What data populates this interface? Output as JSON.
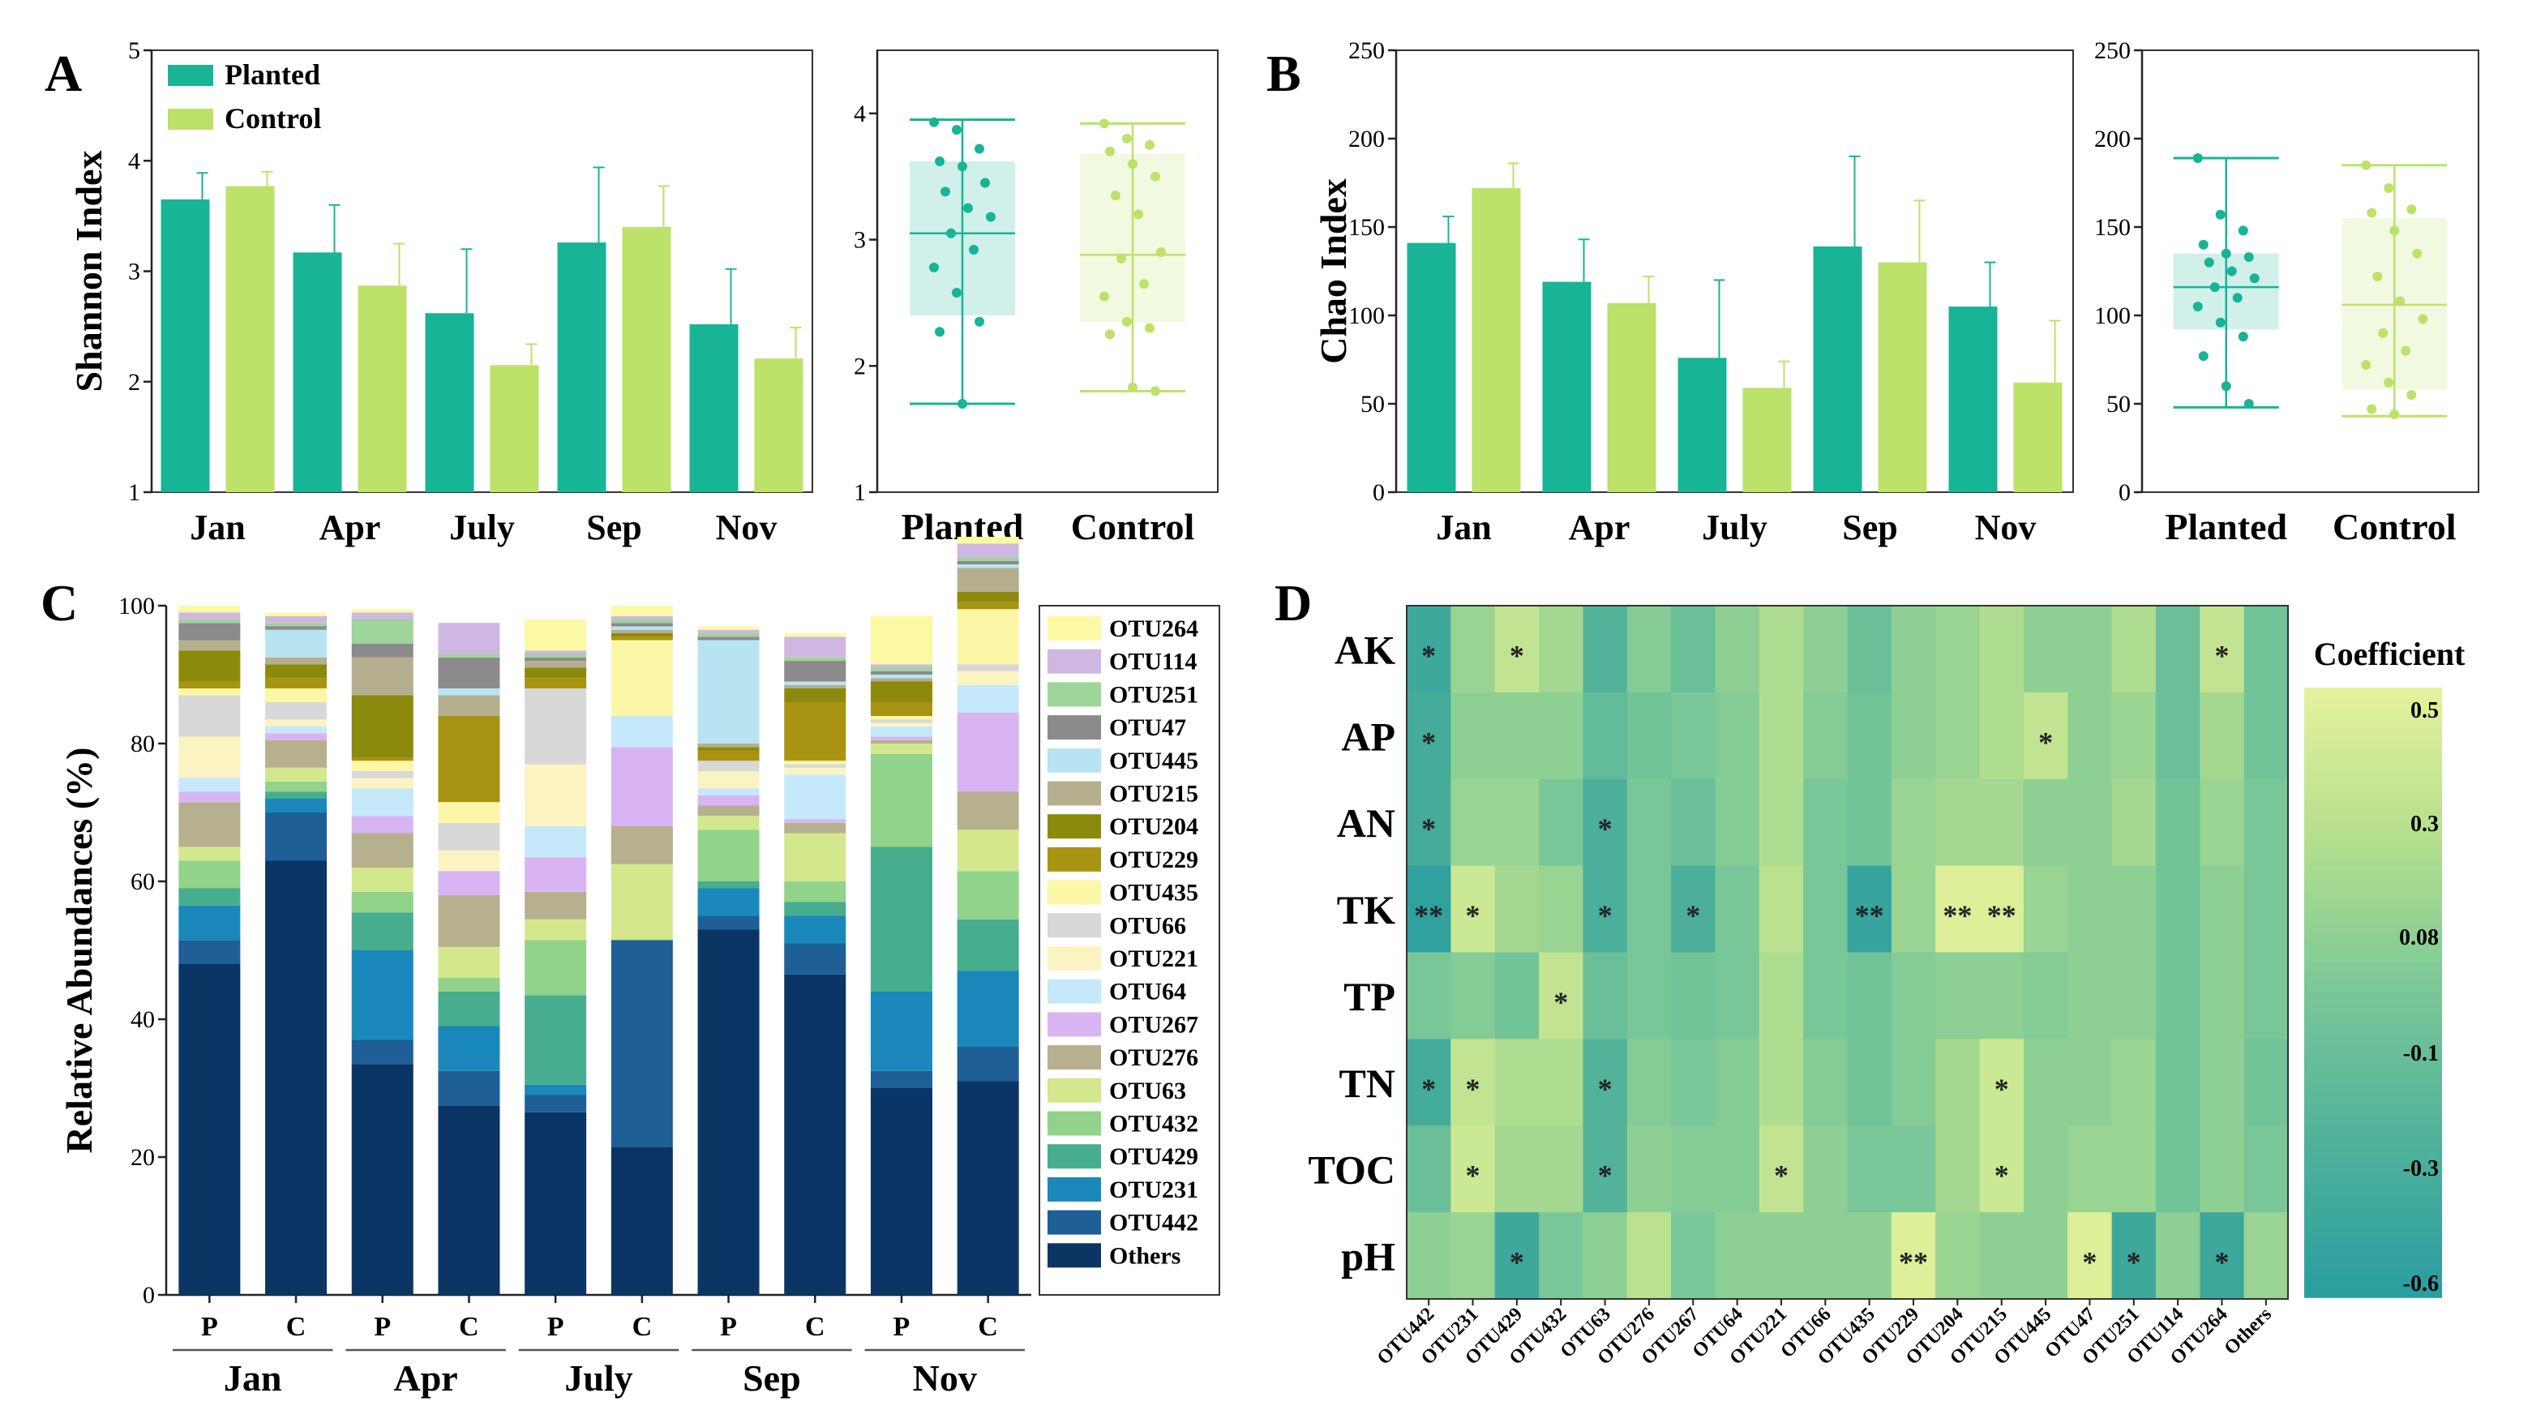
{
  "chart_data": [
    {
      "id": "A-bar",
      "panel": "A",
      "type": "bar",
      "ylabel": "Shannon Index",
      "ylim": [
        1,
        5
      ],
      "yticks": [
        1,
        2,
        3,
        4,
        5
      ],
      "categories": [
        "Jan",
        "Apr",
        "July",
        "Sep",
        "Nov"
      ],
      "series": [
        {
          "name": "Planted",
          "color": "#17b495",
          "values": [
            3.65,
            3.17,
            2.62,
            3.26,
            2.52
          ],
          "errors": [
            0.24,
            0.43,
            0.58,
            0.68,
            0.5
          ]
        },
        {
          "name": "Control",
          "color": "#bce26a",
          "values": [
            3.77,
            2.87,
            2.15,
            3.4,
            2.21
          ],
          "errors": [
            0.13,
            0.38,
            0.19,
            0.37,
            0.28
          ]
        }
      ],
      "legend": "top-left"
    },
    {
      "id": "A-box",
      "panel": "A",
      "type": "box",
      "ylim": [
        1,
        4.5
      ],
      "yticks": [
        1,
        2,
        3,
        4
      ],
      "groups": [
        {
          "name": "Planted",
          "color": "#17b495",
          "q1": 2.4,
          "median": 3.05,
          "q3": 3.62,
          "whisker_low": 1.7,
          "whisker_high": 3.95,
          "points": [
            3.93,
            3.87,
            3.72,
            3.62,
            3.58,
            3.45,
            3.38,
            3.25,
            3.18,
            3.05,
            2.92,
            2.78,
            2.58,
            2.35,
            2.27,
            1.7
          ]
        },
        {
          "name": "Control",
          "color": "#bce26a",
          "q1": 2.35,
          "median": 2.88,
          "q3": 3.68,
          "whisker_low": 1.8,
          "whisker_high": 3.92,
          "points": [
            3.92,
            3.8,
            3.75,
            3.7,
            3.6,
            3.5,
            3.35,
            3.2,
            2.9,
            2.85,
            2.65,
            2.55,
            2.35,
            2.3,
            2.25,
            1.83,
            1.8
          ]
        }
      ]
    },
    {
      "id": "B-bar",
      "panel": "B",
      "type": "bar",
      "ylabel": "Chao Index",
      "ylim": [
        0,
        250
      ],
      "yticks": [
        0,
        50,
        100,
        150,
        200,
        250
      ],
      "categories": [
        "Jan",
        "Apr",
        "July",
        "Sep",
        "Nov"
      ],
      "series": [
        {
          "name": "Planted",
          "color": "#17b495",
          "values": [
            141,
            119,
            76,
            139,
            105
          ],
          "errors": [
            15,
            24,
            44,
            51,
            25
          ]
        },
        {
          "name": "Control",
          "color": "#bce26a",
          "values": [
            172,
            107,
            59,
            130,
            62
          ],
          "errors": [
            14,
            15,
            15,
            35,
            35
          ]
        }
      ]
    },
    {
      "id": "B-box",
      "panel": "B",
      "type": "box",
      "ylim": [
        0,
        250
      ],
      "yticks": [
        0,
        50,
        100,
        150,
        200,
        250
      ],
      "groups": [
        {
          "name": "Planted",
          "color": "#17b495",
          "q1": 92,
          "median": 116,
          "q3": 135,
          "whisker_low": 48,
          "whisker_high": 189,
          "points": [
            189,
            157,
            148,
            140,
            135,
            133,
            130,
            125,
            121,
            116,
            110,
            105,
            96,
            88,
            77,
            60,
            50
          ]
        },
        {
          "name": "Control",
          "color": "#bce26a",
          "q1": 58,
          "median": 106,
          "q3": 155,
          "whisker_low": 43,
          "whisker_high": 185,
          "points": [
            185,
            172,
            160,
            158,
            148,
            135,
            122,
            108,
            98,
            90,
            80,
            72,
            62,
            55,
            47,
            44
          ]
        }
      ]
    },
    {
      "id": "C-stacked",
      "panel": "C",
      "type": "bar",
      "stacked": true,
      "ylabel": "Relative Abundances (%)",
      "ylim": [
        0,
        100
      ],
      "yticks": [
        0,
        20,
        40,
        60,
        80,
        100
      ],
      "categories": [
        "P",
        "C",
        "P",
        "C",
        "P",
        "C",
        "P",
        "C",
        "P",
        "C"
      ],
      "groups": [
        "Jan",
        "Apr",
        "July",
        "Sep",
        "Nov"
      ],
      "series": [
        {
          "name": "Others",
          "color": "#0a3564",
          "values": [
            48,
            63,
            33.5,
            27.5,
            26.5,
            21.5,
            53,
            46.5,
            30,
            31
          ]
        },
        {
          "name": "OTU442",
          "color": "#1e5f97",
          "values": [
            3.5,
            7,
            3.5,
            5,
            2.5,
            30,
            2,
            4.5,
            2.5,
            5
          ]
        },
        {
          "name": "OTU231",
          "color": "#1a88ba",
          "values": [
            5,
            2,
            13,
            6.5,
            1.5,
            0,
            4,
            4,
            11.5,
            11
          ]
        },
        {
          "name": "OTU429",
          "color": "#46ae8e",
          "values": [
            2.5,
            1,
            5.5,
            5,
            13,
            0,
            1,
            2,
            21,
            7.5
          ]
        },
        {
          "name": "OTU432",
          "color": "#91d38b",
          "values": [
            4,
            1.5,
            3,
            2,
            8,
            0,
            7.5,
            3,
            13.5,
            7
          ]
        },
        {
          "name": "OTU63",
          "color": "#d3e88c",
          "values": [
            2,
            2,
            3.5,
            4.5,
            3,
            11,
            2,
            7,
            1.5,
            6
          ]
        },
        {
          "name": "OTU276",
          "color": "#b6b08e",
          "values": [
            6.5,
            4,
            5,
            7.5,
            4,
            5.5,
            1.5,
            1.5,
            0.5,
            5.5
          ]
        },
        {
          "name": "OTU267",
          "color": "#d8b5f2",
          "values": [
            1.5,
            1,
            2.5,
            3.5,
            5,
            11.5,
            1.5,
            0.5,
            0.5,
            11.5
          ]
        },
        {
          "name": "OTU64",
          "color": "#c5e8fb",
          "values": [
            2,
            1,
            4,
            0,
            4.5,
            4.5,
            1,
            6.5,
            1.5,
            4
          ]
        },
        {
          "name": "OTU221",
          "color": "#fcf3c2",
          "values": [
            6,
            1,
            1.5,
            3,
            9,
            0,
            2.5,
            1,
            0.5,
            2
          ]
        },
        {
          "name": "OTU66",
          "color": "#d8d8d8",
          "values": [
            6,
            2.5,
            1,
            4,
            11,
            0,
            1.5,
            0.5,
            0.5,
            1
          ]
        },
        {
          "name": "OTU435",
          "color": "#fbf7a7",
          "values": [
            1,
            2,
            1.5,
            3,
            0,
            11,
            0,
            0.5,
            0.5,
            8
          ]
        },
        {
          "name": "OTU229",
          "color": "#a89412",
          "values": [
            1,
            1.5,
            0.5,
            12.5,
            1.5,
            0.5,
            1.5,
            8.5,
            2,
            1
          ]
        },
        {
          "name": "OTU204",
          "color": "#8c8a0c",
          "values": [
            4.5,
            2,
            9,
            0,
            1.5,
            0.5,
            0.5,
            2,
            3,
            1.5
          ]
        },
        {
          "name": "OTU215",
          "color": "#b5af90",
          "values": [
            1.5,
            1,
            5.5,
            3,
            1,
            0.5,
            0.5,
            0.5,
            0.5,
            3.5
          ]
        },
        {
          "name": "OTU445",
          "color": "#b8e4f2",
          "values": [
            0,
            4,
            0,
            1,
            0,
            0.5,
            15,
            0.5,
            0.5,
            0.5
          ]
        },
        {
          "name": "OTU47",
          "color": "#8b8b8b",
          "values": [
            2.5,
            0.5,
            2,
            4.5,
            0.5,
            0.5,
            0.5,
            3,
            0.5,
            0.5
          ]
        },
        {
          "name": "OTU251",
          "color": "#9ed59a",
          "values": [
            0.5,
            0.5,
            3.5,
            0.5,
            0.5,
            0.5,
            0.5,
            0.5,
            0.5,
            0.5
          ]
        },
        {
          "name": "OTU114",
          "color": "#ceb8e2",
          "values": [
            1,
            1,
            1,
            4.5,
            0.5,
            0.5,
            0.5,
            3,
            0.5,
            2
          ]
        },
        {
          "name": "OTU264",
          "color": "#fcf9a5",
          "values": [
            1,
            0.5,
            0.5,
            0,
            4.5,
            1.5,
            0.5,
            0.5,
            7,
            1
          ]
        }
      ]
    },
    {
      "id": "D-heatmap",
      "panel": "D",
      "type": "heatmap",
      "rows": [
        "AK",
        "AP",
        "AN",
        "TK",
        "TP",
        "TN",
        "TOC",
        "pH"
      ],
      "columns": [
        "OTU442",
        "OTU231",
        "OTU429",
        "OTU432",
        "OTU63",
        "OTU276",
        "OTU267",
        "OTU64",
        "OTU221",
        "OTU66",
        "OTU435",
        "OTU229",
        "OTU204",
        "OTU215",
        "OTU445",
        "OTU47",
        "OTU251",
        "OTU114",
        "OTU264",
        "Others"
      ],
      "values": [
        [
          -0.45,
          0.1,
          0.3,
          0.15,
          -0.3,
          0.0,
          -0.15,
          0.05,
          0.2,
          0.05,
          -0.15,
          0.05,
          0.1,
          0.2,
          0.05,
          0.05,
          0.2,
          -0.15,
          0.3,
          -0.1
        ],
        [
          -0.4,
          0.05,
          0.05,
          0.05,
          -0.2,
          -0.1,
          -0.05,
          0.0,
          0.2,
          0.0,
          -0.1,
          0.05,
          0.1,
          0.2,
          0.3,
          0.05,
          0.1,
          -0.15,
          0.15,
          -0.1
        ],
        [
          -0.4,
          0.1,
          0.1,
          -0.05,
          -0.35,
          -0.05,
          -0.15,
          0.0,
          0.2,
          -0.05,
          -0.1,
          0.1,
          0.15,
          0.15,
          0.05,
          0.05,
          0.15,
          -0.1,
          0.1,
          -0.05
        ],
        [
          -0.55,
          0.35,
          0.15,
          0.1,
          -0.35,
          -0.05,
          -0.35,
          -0.05,
          0.25,
          -0.05,
          -0.5,
          0.1,
          0.45,
          0.45,
          0.1,
          0.05,
          0.05,
          -0.1,
          0.05,
          -0.05
        ],
        [
          -0.05,
          0.0,
          -0.1,
          0.3,
          -0.15,
          -0.05,
          -0.1,
          -0.05,
          0.2,
          -0.05,
          -0.1,
          0.0,
          0.05,
          0.05,
          0.0,
          0.05,
          0.05,
          -0.1,
          0.05,
          -0.05
        ],
        [
          -0.4,
          0.3,
          0.2,
          0.2,
          -0.3,
          0.0,
          -0.05,
          0.0,
          0.2,
          0.0,
          -0.1,
          0.0,
          0.15,
          0.35,
          0.05,
          0.05,
          0.1,
          -0.1,
          0.05,
          -0.1
        ],
        [
          -0.15,
          0.35,
          0.15,
          0.15,
          -0.3,
          0.05,
          0.0,
          0.0,
          0.3,
          0.05,
          -0.05,
          -0.05,
          0.15,
          0.35,
          0.05,
          0.1,
          0.1,
          -0.1,
          0.05,
          -0.05
        ],
        [
          0.05,
          0.1,
          -0.45,
          -0.05,
          0.05,
          0.25,
          -0.05,
          0.05,
          0.05,
          0.05,
          0.05,
          0.45,
          0.1,
          0.05,
          0.05,
          0.45,
          -0.45,
          0.05,
          -0.45,
          0.1
        ]
      ],
      "significance": [
        [
          "*",
          "",
          "*",
          "",
          "",
          "",
          "",
          "",
          "",
          "",
          "",
          "",
          "",
          "",
          "",
          "",
          "",
          "",
          "*",
          ""
        ],
        [
          "*",
          "",
          "",
          "",
          "",
          "",
          "",
          "",
          "",
          "",
          "",
          "",
          "",
          "",
          "*",
          "",
          "",
          "",
          "",
          ""
        ],
        [
          "*",
          "",
          "",
          "",
          "*",
          "",
          "",
          "",
          "",
          "",
          "",
          "",
          "",
          "",
          "",
          "",
          "",
          "",
          "",
          ""
        ],
        [
          "**",
          "*",
          "",
          "",
          "*",
          "",
          "*",
          "",
          "",
          "",
          "**",
          "",
          "**",
          "**",
          "",
          "",
          "",
          "",
          "",
          ""
        ],
        [
          "",
          "",
          "",
          "*",
          "",
          "",
          "",
          "",
          "",
          "",
          "",
          "",
          "",
          "",
          "",
          "",
          "",
          "",
          "",
          ""
        ],
        [
          "*",
          "*",
          "",
          "",
          "*",
          "",
          "",
          "",
          "",
          "",
          "",
          "",
          "",
          "*",
          "",
          "",
          "",
          "",
          "",
          ""
        ],
        [
          "",
          "*",
          "",
          "",
          "*",
          "",
          "",
          "",
          "*",
          "",
          "",
          "",
          "",
          "*",
          "",
          "",
          "",
          "",
          "",
          ""
        ],
        [
          "",
          "",
          "*",
          "",
          "",
          "",
          "",
          "",
          "",
          "",
          "",
          "**",
          "",
          "",
          "",
          "*",
          "*",
          "",
          "*",
          ""
        ]
      ],
      "colorbar_title": "Coefficient",
      "colorbar_ticks": [
        "0.5",
        "0.3",
        "0.08",
        "-0.1",
        "-0.3",
        "-0.6"
      ],
      "colorbar_tick_values": [
        0.5,
        0.3,
        0.08,
        -0.1,
        -0.3,
        -0.6
      ],
      "colormap": [
        "#2a9da0",
        "#4fb19a",
        "#79c798",
        "#b4df8e",
        "#e6f29c"
      ]
    }
  ],
  "panel_labels": {
    "A": "A",
    "B": "B",
    "C": "C",
    "D": "D"
  },
  "box_labels": {
    "planted": "Planted",
    "control": "Control"
  }
}
